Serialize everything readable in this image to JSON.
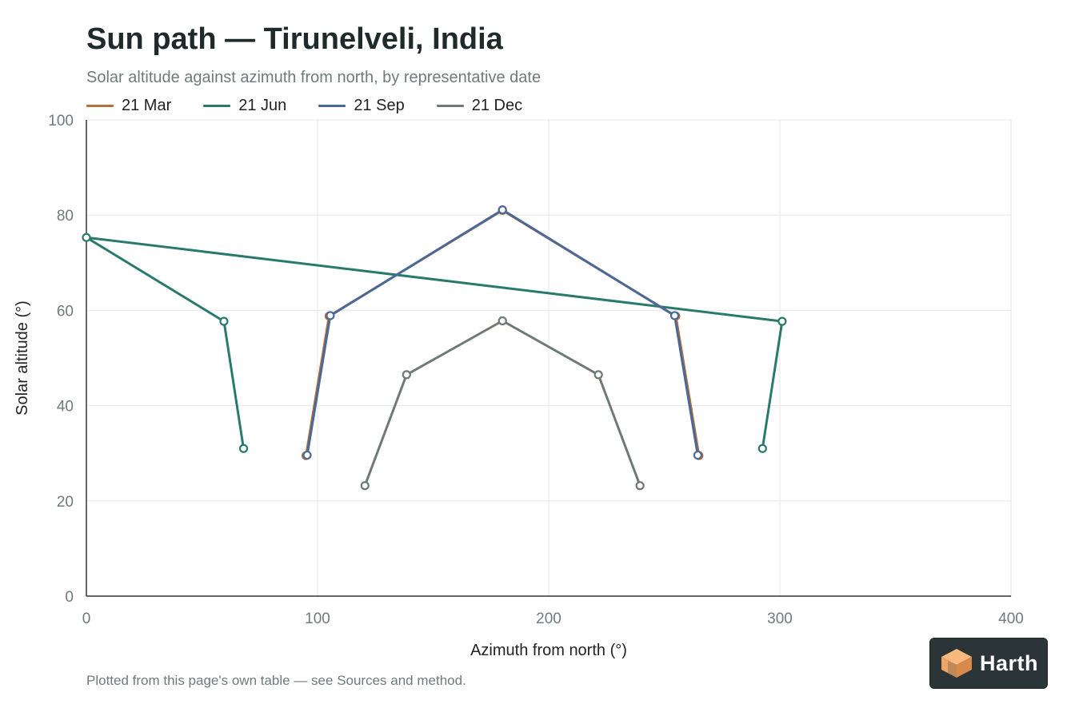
{
  "chart_data": {
    "type": "line",
    "title": "Sun path — Tirunelveli, India",
    "subtitle": "Solar altitude against azimuth from north, by representative date",
    "xlabel": "Azimuth from north (°)",
    "ylabel": "Solar altitude (°)",
    "xlim": [
      0,
      400
    ],
    "ylim": [
      0,
      100
    ],
    "xticks": [
      0,
      100,
      200,
      300,
      400
    ],
    "yticks": [
      0,
      20,
      40,
      60,
      80,
      100
    ],
    "grid": true,
    "legend_position": "top-left",
    "series": [
      {
        "name": "21 Mar",
        "color": "#b5703a",
        "points": [
          [
            95,
            29.5
          ],
          [
            105,
            58.8
          ],
          [
            180,
            81
          ],
          [
            255,
            58.8
          ],
          [
            265,
            29.5
          ]
        ]
      },
      {
        "name": "21 Jun",
        "color": "#2a7a6c",
        "points": [
          [
            68,
            31
          ],
          [
            59.5,
            57.7
          ],
          [
            0,
            75.3
          ],
          [
            301,
            57.7
          ],
          [
            292.5,
            31
          ]
        ]
      },
      {
        "name": "21 Sep",
        "color": "#4a6898",
        "points": [
          [
            95.5,
            29.6
          ],
          [
            105.5,
            58.9
          ],
          [
            180,
            81.1
          ],
          [
            254.5,
            58.9
          ],
          [
            264.5,
            29.6
          ]
        ]
      },
      {
        "name": "21 Dec",
        "color": "#6e7a74",
        "points": [
          [
            120.5,
            23.2
          ],
          [
            138.5,
            46.5
          ],
          [
            180,
            57.8
          ],
          [
            221.5,
            46.5
          ],
          [
            239.5,
            23.2
          ]
        ]
      }
    ]
  },
  "footer": "Plotted from this page's own table — see Sources and method.",
  "logo": {
    "text": "Harth",
    "bg_color": "#2b3538",
    "icon_color": "#f0a565"
  }
}
